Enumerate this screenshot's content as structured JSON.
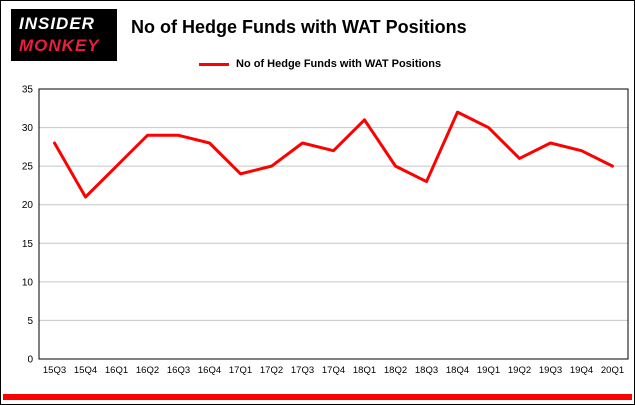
{
  "logo": {
    "line1": "INSIDER",
    "line2": "MONKEY",
    "bg_color": "#000000",
    "line1_color": "#ffffff",
    "line2_color": "#ec1d3d"
  },
  "header": {
    "title": "No of Hedge Funds with WAT Positions"
  },
  "legend": {
    "label": "No of Hedge Funds with WAT Positions",
    "color": "#ff0000"
  },
  "chart_data": {
    "type": "line",
    "title": "No of Hedge Funds with WAT Positions",
    "categories": [
      "15Q3",
      "15Q4",
      "16Q1",
      "16Q2",
      "16Q3",
      "16Q4",
      "17Q1",
      "17Q2",
      "17Q3",
      "17Q4",
      "18Q1",
      "18Q2",
      "18Q3",
      "18Q4",
      "19Q1",
      "19Q2",
      "19Q3",
      "19Q4",
      "20Q1"
    ],
    "values": [
      28,
      21,
      25,
      29,
      29,
      28,
      24,
      25,
      28,
      27,
      31,
      25,
      23,
      32,
      30,
      26,
      28,
      27,
      25
    ],
    "xlabel": "",
    "ylabel": "",
    "ylim": [
      0,
      35
    ],
    "yticks": [
      0,
      5,
      10,
      15,
      20,
      25,
      30,
      35
    ],
    "grid": true,
    "legend_position": "top",
    "line_color": "#ff0000",
    "grid_color": "#c6c6c6",
    "axis_color": "#000000",
    "accent_bar_color": "#ff0000"
  }
}
